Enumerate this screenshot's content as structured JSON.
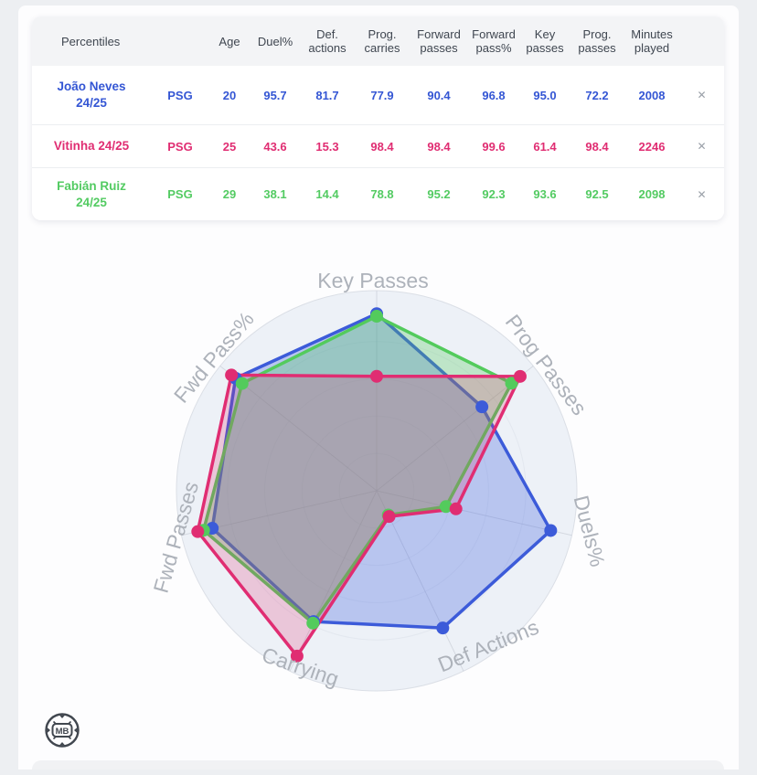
{
  "table": {
    "columns": [
      "Percentiles",
      "",
      "Age",
      "Duel%",
      "Def. actions",
      "Prog. carries",
      "Forward passes",
      "Forward pass%",
      "Key passes",
      "Prog. passes",
      "Minutes played"
    ],
    "remove_label": "✕",
    "rows": [
      {
        "name": "João Neves 24/25",
        "team": "PSG",
        "color": "#3456d4",
        "values": [
          "20",
          "95.7",
          "81.7",
          "77.9",
          "90.4",
          "96.8",
          "95.0",
          "72.2",
          "2008"
        ]
      },
      {
        "name": "Vitinha 24/25",
        "team": "PSG",
        "color": "#e02d72",
        "values": [
          "25",
          "43.6",
          "15.3",
          "98.4",
          "98.4",
          "99.6",
          "61.4",
          "98.4",
          "2246"
        ]
      },
      {
        "name": "Fabián Ruiz 24/25",
        "team": "PSG",
        "color": "#53cb62",
        "values": [
          "29",
          "38.1",
          "14.4",
          "78.8",
          "95.2",
          "92.3",
          "93.6",
          "92.5",
          "2098"
        ]
      }
    ]
  },
  "chart_data": {
    "type": "radar",
    "axes": [
      "Key Passes",
      "Prog Passes",
      "Duels%",
      "Def Actions",
      "Carrying",
      "Fwd Passes",
      "Fwd Pass%"
    ],
    "range": [
      0,
      100
    ],
    "grid": "circular",
    "legend_position": "none",
    "series": [
      {
        "name": "João Neves 24/25",
        "color": "#3c5bd9",
        "values": [
          95.0,
          72.2,
          95.7,
          81.7,
          77.9,
          90.4,
          96.8
        ]
      },
      {
        "name": "Fabián Ruiz 24/25",
        "color": "#53cb5c",
        "values": [
          93.6,
          92.5,
          38.1,
          14.4,
          78.8,
          95.2,
          92.3
        ]
      },
      {
        "name": "Vitinha 24/25",
        "color": "#e02d72",
        "values": [
          61.4,
          98.4,
          43.6,
          15.3,
          98.4,
          98.4,
          99.6
        ]
      }
    ]
  },
  "logo": {
    "text": "MB"
  }
}
